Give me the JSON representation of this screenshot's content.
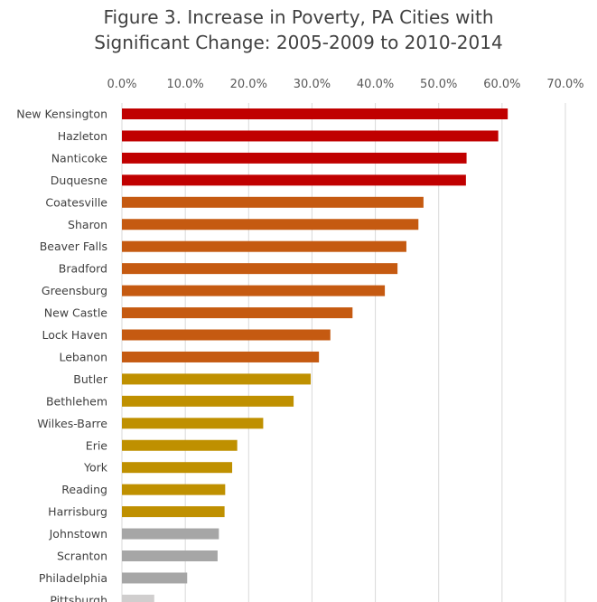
{
  "chart_data": {
    "type": "bar",
    "orientation": "horizontal",
    "title_line1": "Figure 3. Increase in Poverty, PA Cities with",
    "title_line2": "Significant Change: 2005-2009 to 2010-2014",
    "xlim": [
      0,
      70
    ],
    "tick_values": [
      0,
      10,
      20,
      30,
      40,
      50,
      60,
      70
    ],
    "tick_labels": [
      "0.0%",
      "10.0%",
      "20.0%",
      "30.0%",
      "40.0%",
      "50.0%",
      "60.0%",
      "70.0%"
    ],
    "grid": true,
    "categories": [
      "New Kensington",
      "Hazleton",
      "Nanticoke",
      "Duquesne",
      "Coatesville",
      "Sharon",
      "Beaver Falls",
      "Bradford",
      "Greensburg",
      "New Castle",
      "Lock Haven",
      "Lebanon",
      "Butler",
      "Bethlehem",
      "Wilkes-Barre",
      "Erie",
      "York",
      "Reading",
      "Harrisburg",
      "Johnstown",
      "Scranton",
      "Philadelphia",
      "Pittsburgh"
    ],
    "values": [
      60.9,
      59.4,
      54.4,
      54.3,
      47.6,
      46.8,
      44.9,
      43.5,
      41.5,
      36.4,
      32.9,
      31.1,
      29.8,
      27.1,
      22.3,
      18.2,
      17.4,
      16.3,
      16.2,
      15.3,
      15.1,
      10.3,
      5.1
    ],
    "bar_colors": [
      "#c00000",
      "#c00000",
      "#c00000",
      "#c00000",
      "#c55a11",
      "#c55a11",
      "#c55a11",
      "#c55a11",
      "#c55a11",
      "#c55a11",
      "#c55a11",
      "#c55a11",
      "#bf9000",
      "#bf9000",
      "#bf9000",
      "#bf9000",
      "#bf9000",
      "#bf9000",
      "#bf9000",
      "#a6a6a6",
      "#a6a6a6",
      "#a6a6a6",
      "#d0cece"
    ]
  }
}
